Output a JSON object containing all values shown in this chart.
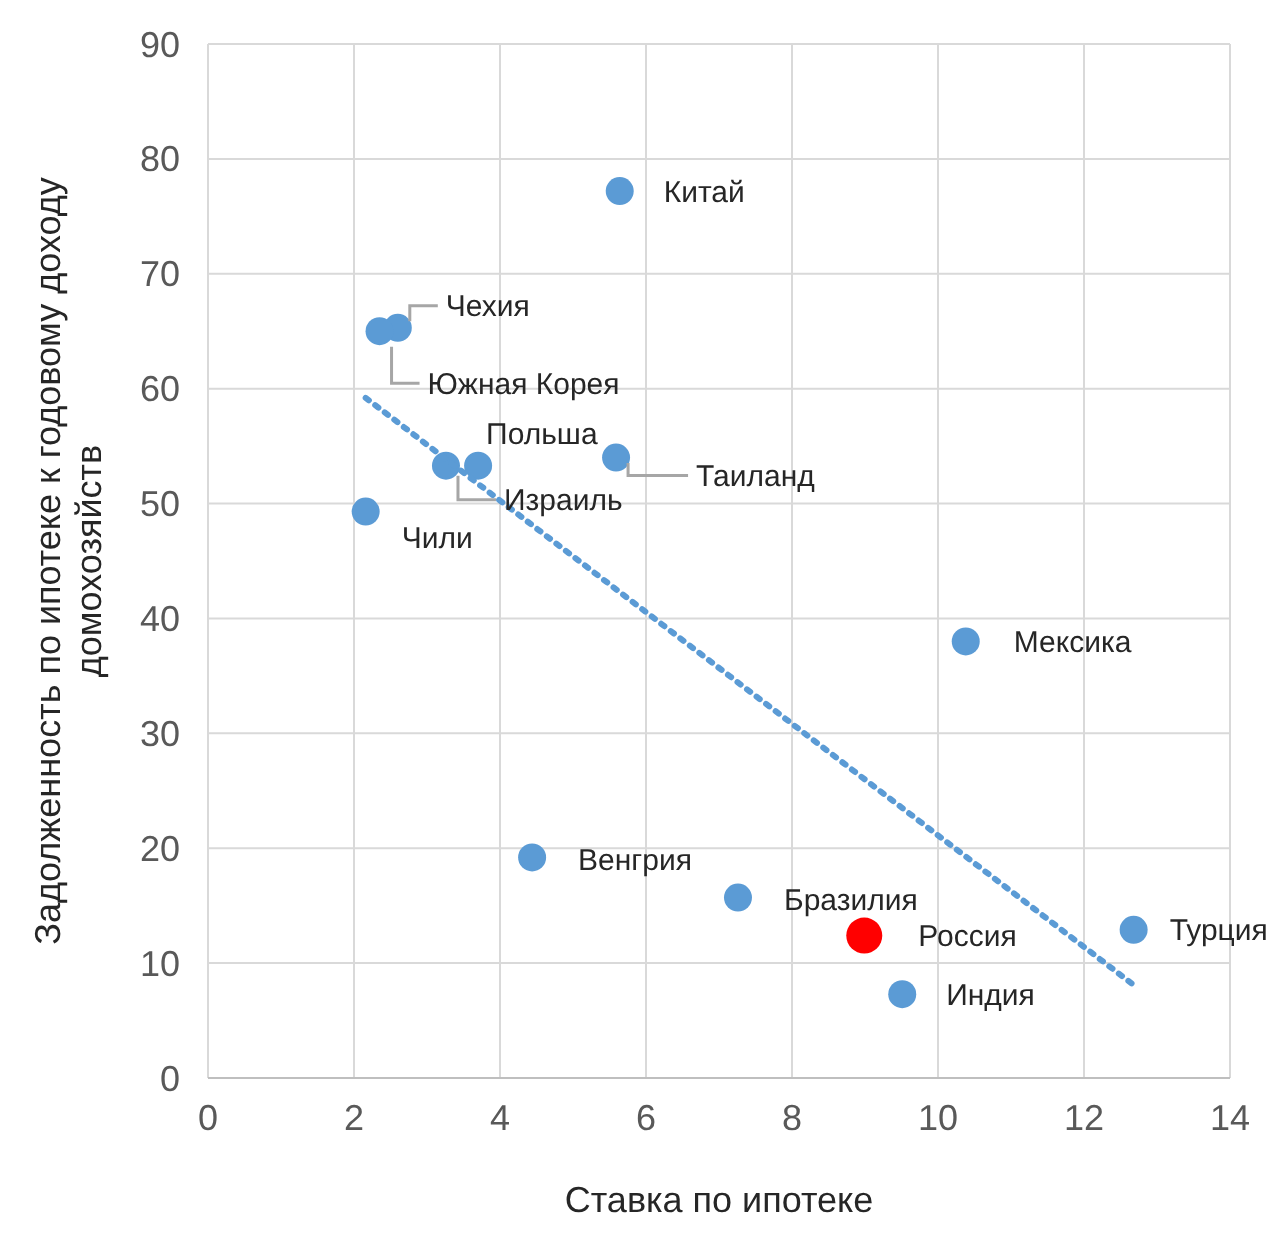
{
  "chart_data": {
    "type": "scatter",
    "xlabel": "Ставка по ипотеке",
    "ylabel": "Задолженность по ипотеке к годовому доходу домохозяйств",
    "xlim": [
      0,
      14
    ],
    "xticks": [
      0,
      2,
      4,
      6,
      8,
      10,
      12,
      14
    ],
    "ylim": [
      0,
      90
    ],
    "yticks": [
      0,
      10,
      20,
      30,
      40,
      50,
      60,
      70,
      80,
      90
    ],
    "grid": true,
    "marker": "circle",
    "series": [
      {
        "color": "#5b9bd5",
        "x": [
          5.64,
          2.6,
          2.35,
          3.7,
          3.26,
          5.59,
          2.16,
          10.38,
          4.44,
          7.26,
          9.51,
          12.68
        ],
        "values": [
          77.2,
          65.3,
          65,
          53.3,
          53.3,
          54,
          49.3,
          38,
          19.2,
          15.7,
          7.3,
          12.9
        ]
      },
      {
        "color": "#ff0000",
        "x": [
          8.99
        ],
        "values": [
          12.4
        ]
      },
      {
        "type": "line",
        "color": "#5b9bd5",
        "line_style": "dotted",
        "marker": "none",
        "x": [
          2.16,
          12.66
        ],
        "values": [
          59.2,
          8.2
        ]
      }
    ],
    "annotations": [
      {
        "text": "Китай",
        "x": 5.64,
        "y": 77.2
      },
      {
        "text": "Чехия",
        "x": 2.6,
        "y": 65.3
      },
      {
        "text": "Южная Корея",
        "x": 2.35,
        "y": 65
      },
      {
        "text": "Польша",
        "x": 3.7,
        "y": 53.3
      },
      {
        "text": "Израиль",
        "x": 3.26,
        "y": 53.3
      },
      {
        "text": "Таиланд",
        "x": 5.59,
        "y": 54
      },
      {
        "text": "Чили",
        "x": 2.16,
        "y": 49.3
      },
      {
        "text": "Мексика",
        "x": 10.38,
        "y": 38
      },
      {
        "text": "Венгрия",
        "x": 4.44,
        "y": 19.2
      },
      {
        "text": "Бразилия",
        "x": 7.26,
        "y": 15.7
      },
      {
        "text": "Россия",
        "x": 8.99,
        "y": 12.4
      },
      {
        "text": "Индия",
        "x": 9.51,
        "y": 7.3
      },
      {
        "text": "Турция",
        "x": 12.68,
        "y": 12.9
      }
    ]
  }
}
